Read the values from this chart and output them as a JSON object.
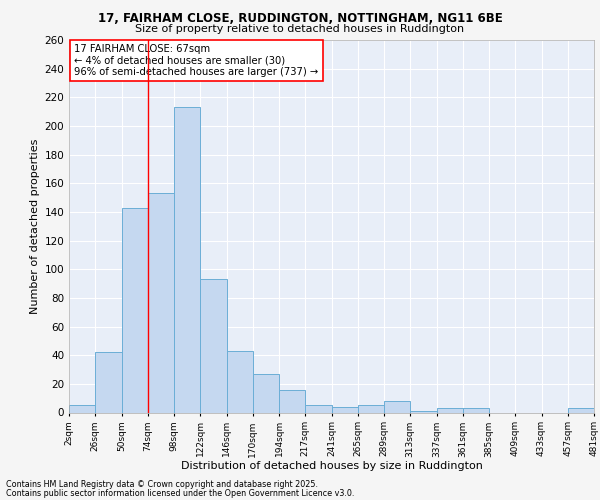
{
  "title_line1": "17, FAIRHAM CLOSE, RUDDINGTON, NOTTINGHAM, NG11 6BE",
  "title_line2": "Size of property relative to detached houses in Ruddington",
  "xlabel": "Distribution of detached houses by size in Ruddington",
  "ylabel": "Number of detached properties",
  "bar_color": "#c5d8f0",
  "bar_edge_color": "#6baed6",
  "categories": [
    "2sqm",
    "26sqm",
    "50sqm",
    "74sqm",
    "98sqm",
    "122sqm",
    "146sqm",
    "170sqm",
    "194sqm",
    "217sqm",
    "241sqm",
    "265sqm",
    "289sqm",
    "313sqm",
    "337sqm",
    "361sqm",
    "385sqm",
    "409sqm",
    "433sqm",
    "457sqm",
    "481sqm"
  ],
  "values": [
    5,
    42,
    143,
    153,
    213,
    93,
    43,
    27,
    16,
    5,
    4,
    5,
    8,
    1,
    3,
    3,
    0,
    0,
    0,
    3
  ],
  "ylim": [
    0,
    260
  ],
  "yticks": [
    0,
    20,
    40,
    60,
    80,
    100,
    120,
    140,
    160,
    180,
    200,
    220,
    240,
    260
  ],
  "annotation_text": "17 FAIRHAM CLOSE: 67sqm\n← 4% of detached houses are smaller (30)\n96% of semi-detached houses are larger (737) →",
  "footer_line1": "Contains HM Land Registry data © Crown copyright and database right 2025.",
  "footer_line2": "Contains public sector information licensed under the Open Government Licence v3.0.",
  "background_color": "#e8eef8",
  "grid_color": "#ffffff",
  "fig_bg_color": "#f5f5f5"
}
